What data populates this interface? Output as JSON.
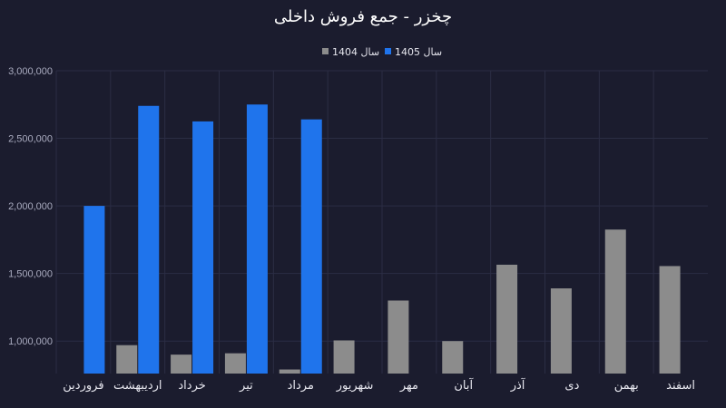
{
  "chart_data": {
    "type": "bar",
    "title": "چخزر - جمع فروش داخلی",
    "xlabel": "",
    "ylabel": "",
    "ylim": [
      760000,
      3000000
    ],
    "yticks": [
      1000000,
      1500000,
      2000000,
      2500000,
      3000000
    ],
    "ytick_labels": [
      "1,000,000",
      "1,500,000",
      "2,000,000",
      "2,500,000",
      "3,000,000"
    ],
    "categories": [
      "فروردین",
      "اردیبهشت",
      "خرداد",
      "تیر",
      "مرداد",
      "شهریور",
      "مهر",
      "آبان",
      "آذر",
      "دی",
      "بهمن",
      "اسفند"
    ],
    "series": [
      {
        "name": "سال 1404",
        "color": "#8c8c8c",
        "values": [
          750000,
          970000,
          900000,
          910000,
          790000,
          1005000,
          1300000,
          1000000,
          1565000,
          1390000,
          1825000,
          1555000
        ]
      },
      {
        "name": "سال 1405",
        "color": "#1f74ec",
        "values": [
          2000000,
          2740000,
          2625000,
          2750000,
          2640000,
          null,
          null,
          null,
          null,
          null,
          null,
          null
        ]
      }
    ],
    "grid": true,
    "legend_position": "top-center"
  }
}
